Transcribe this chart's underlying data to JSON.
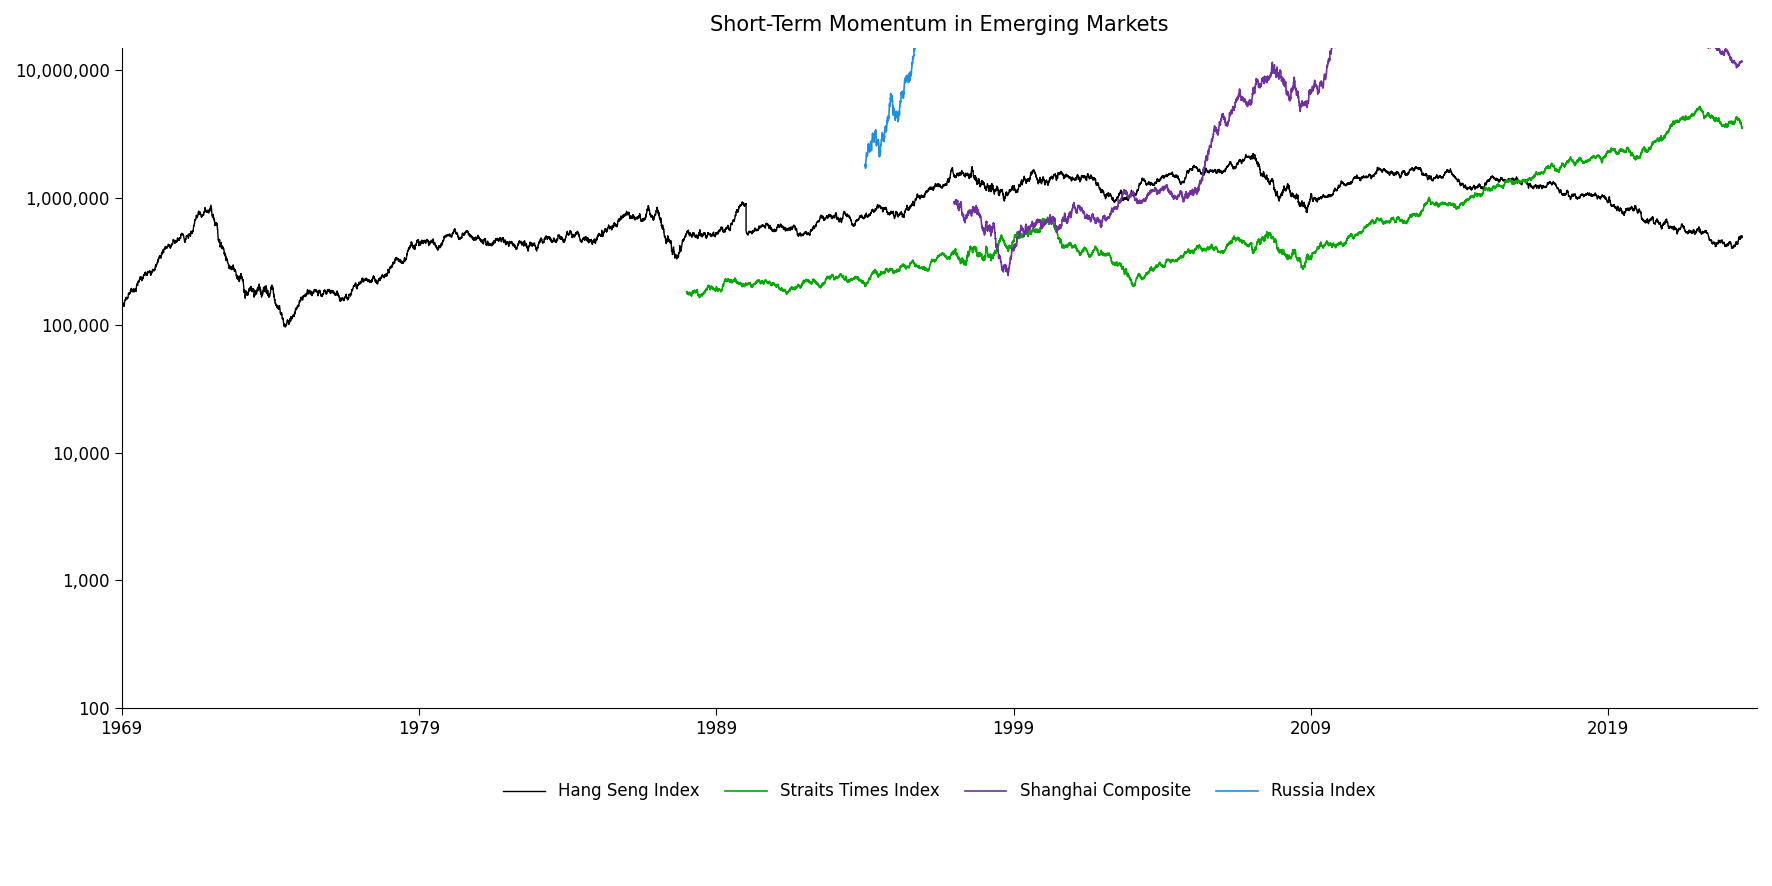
{
  "title": "Short-Term Momentum in Emerging Markets",
  "title_fontsize": 15,
  "series": [
    {
      "name": "Hang Seng Index",
      "color": "#000000",
      "lw": 1.0
    },
    {
      "name": "Straits Times Index",
      "color": "#00aa00",
      "lw": 1.2
    },
    {
      "name": "Shanghai Composite",
      "color": "#7030a0",
      "lw": 1.2
    },
    {
      "name": "Russia Index",
      "color": "#1f90e0",
      "lw": 1.2
    }
  ],
  "ylim_low": 100,
  "ylim_high": 15000000,
  "xlim_low": 1969,
  "xlim_high": 2024,
  "xticks": [
    1969,
    1979,
    1989,
    1999,
    2009,
    2019
  ],
  "yticks": [
    100,
    1000,
    10000,
    100000,
    1000000,
    10000000
  ],
  "ytick_labels": [
    "100",
    "1,000",
    "10,000",
    "100,000",
    "1,000,000",
    "10,000,000"
  ],
  "background_color": "#ffffff",
  "legend_ncol": 4
}
